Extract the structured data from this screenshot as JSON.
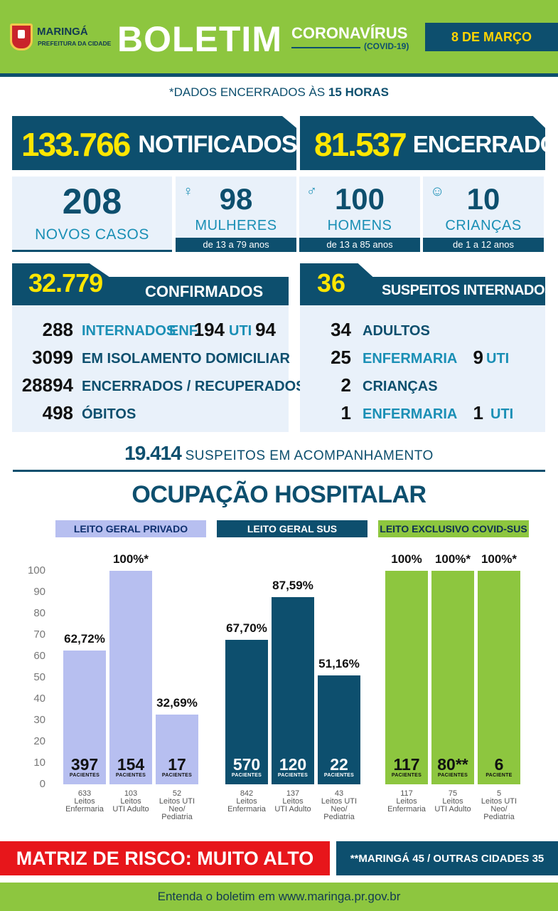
{
  "header": {
    "city": "MARINGÁ",
    "prefecture": "PREFEITURA DA CIDADE",
    "title": "BOLETIM",
    "topic": "CORONAVÍRUS",
    "topic_sub": "(COVID-19)",
    "date": "8 DE MARÇO",
    "green": "#8dc63f",
    "navy": "#0d4f6e"
  },
  "data_note": {
    "prefix": "*DADOS ENCERRADOS ÀS",
    "hour": "15 HORAS"
  },
  "notificados": {
    "value": "133.766",
    "label": "NOTIFICADOS"
  },
  "encerrados": {
    "value": "81.537",
    "label": "ENCERRADOS"
  },
  "novos": {
    "value": "208",
    "label": "NOVOS CASOS"
  },
  "mulheres": {
    "icon": "woman-icon",
    "value": "98",
    "label": "MULHERES",
    "age": "de 13 a 79 anos"
  },
  "homens": {
    "icon": "man-icon",
    "value": "100",
    "label": "HOMENS",
    "age": "de 13 a 85 anos"
  },
  "criancas": {
    "icon": "child-icon",
    "value": "10",
    "label": "CRIANÇAS",
    "age": "de 1 a 12 anos"
  },
  "confirmados": {
    "value": "32.779",
    "label": "CONFIRMADOS",
    "internados": {
      "value": "288",
      "label": "INTERNADOS",
      "enf_label": "ENF.",
      "enf": "194",
      "uti_label": "UTI",
      "uti": "94"
    },
    "isolamento": {
      "value": "3099",
      "label": "EM ISOLAMENTO DOMICILIAR"
    },
    "recuperados": {
      "value": "28894",
      "label": "ENCERRADOS / RECUPERADOS"
    },
    "obitos": {
      "value": "498",
      "label": "ÓBITOS"
    }
  },
  "suspeitos_internados": {
    "value": "36",
    "label": "SUSPEITOS INTERNADOS",
    "adultos": {
      "value": "34",
      "label": "ADULTOS"
    },
    "adultos_enf": {
      "value": "25",
      "label": "ENFERMARIA",
      "uti": "9",
      "uti_label": "UTI"
    },
    "criancas": {
      "value": "2",
      "label": "CRIANÇAS"
    },
    "criancas_enf": {
      "value": "1",
      "label": "ENFERMARIA",
      "uti": "1",
      "uti_label": "UTI"
    }
  },
  "acompanhamento": {
    "value": "19.414",
    "label": "SUSPEITOS EM ACOMPANHAMENTO"
  },
  "ocupacao_title": "OCUPAÇÃO HOSPITALAR",
  "chart_data": {
    "type": "bar",
    "title": "OCUPAÇÃO HOSPITALAR",
    "ylim": [
      0,
      100
    ],
    "yticks": [
      "0",
      "10",
      "20",
      "30",
      "40",
      "50",
      "60",
      "70",
      "80",
      "90",
      "100"
    ],
    "grid": false,
    "groups": [
      {
        "name": "LEITO GERAL PRIVADO",
        "bar_color": "#b7bff0",
        "header_bg": "#b7bff0",
        "header_fg": "#0d2f6e",
        "bars": [
          {
            "value": 62.72,
            "label": "62,72%",
            "patients": "397",
            "patients_label": "PACIENTES",
            "cat1": "633",
            "cat2": "Leitos",
            "cat3": "Enfermaria",
            "cat4": ""
          },
          {
            "value": 100,
            "label": "100%*",
            "patients": "154",
            "patients_label": "PACIENTES",
            "cat1": "103",
            "cat2": "Leitos",
            "cat3": "UTI Adulto",
            "cat4": ""
          },
          {
            "value": 32.69,
            "label": "32,69%",
            "patients": "17",
            "patients_label": "PACIENTES",
            "cat1": "52",
            "cat2": "Leitos UTI",
            "cat3": "Neo/",
            "cat4": "Pediatria"
          }
        ]
      },
      {
        "name": "LEITO GERAL SUS",
        "bar_color": "#0d4f6e",
        "header_bg": "#0d4f6e",
        "header_fg": "#ffffff",
        "bars": [
          {
            "value": 67.7,
            "label": "67,70%",
            "patients": "570",
            "patients_label": "PACIENTES",
            "cat1": "842",
            "cat2": "Leitos",
            "cat3": "Enfermaria",
            "cat4": ""
          },
          {
            "value": 87.59,
            "label": "87,59%",
            "patients": "120",
            "patients_label": "PACIENTES",
            "cat1": "137",
            "cat2": "Leitos",
            "cat3": "UTI Adulto",
            "cat4": ""
          },
          {
            "value": 51.16,
            "label": "51,16%",
            "patients": "22",
            "patients_label": "PACIENTES",
            "cat1": "43",
            "cat2": "Leitos UTI",
            "cat3": "Neo/",
            "cat4": "Pediatria"
          }
        ]
      },
      {
        "name": "LEITO EXCLUSIVO COVID-SUS",
        "bar_color": "#8dc63f",
        "header_bg": "#8dc63f",
        "header_fg": "#0d2f50",
        "bars": [
          {
            "value": 100,
            "label": "100%",
            "patients": "117",
            "patients_label": "PACIENTES",
            "cat1": "117",
            "cat2": "Leitos",
            "cat3": "Enfermaria",
            "cat4": ""
          },
          {
            "value": 100,
            "label": "100%*",
            "patients": "80**",
            "patients_label": "PACIENTES",
            "cat1": "75",
            "cat2": "Leitos",
            "cat3": "UTI Adulto",
            "cat4": ""
          },
          {
            "value": 100,
            "label": "100%*",
            "patients": "6",
            "patients_label": "PACIENTE",
            "cat1": "5",
            "cat2": "Leitos UTI",
            "cat3": "Neo/",
            "cat4": "Pediatria"
          }
        ]
      }
    ]
  },
  "footer": {
    "risk": "MATRIZ DE RISCO: MUITO ALTO",
    "note": "**MARINGÁ 45 / OUTRAS CIDADES 35",
    "site": "Entenda o boletim em www.maringa.pr.gov.br",
    "risk_color": "#e7161b"
  }
}
